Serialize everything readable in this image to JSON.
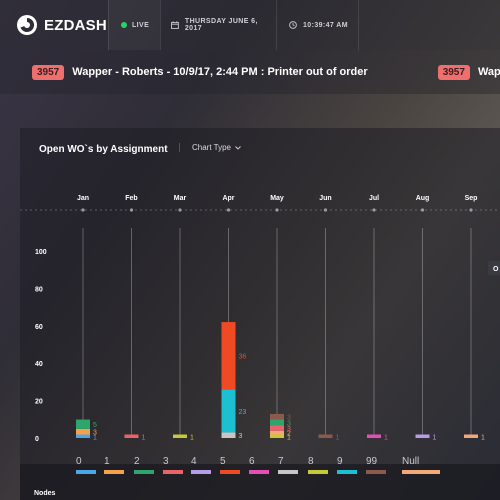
{
  "header": {
    "brand": "EZDASH",
    "live_label": "LIVE",
    "date": "THURSDAY JUNE 6, 2017",
    "time": "10:39:47 AM"
  },
  "ticker": [
    {
      "badge": "3957",
      "text": "Wapper - Roberts - 10/9/17, 2:44 PM : Printer out of order"
    },
    {
      "badge": "3957",
      "text": "Wapper - Ro"
    }
  ],
  "panel": {
    "title": "Open WO`s by Assignment",
    "chart_type_label": "Chart Type",
    "tooltip_fragment": "O"
  },
  "colors": {
    "0": "#4da6e8",
    "1": "#f4a14a",
    "2": "#2ea56a",
    "3": "#e9646a",
    "4": "#b79ce8",
    "5": "#ef4a24",
    "6": "#e34fb3",
    "7": "#c6c6c6",
    "8": "#c5c93a",
    "9": "#1cc0d1",
    "99": "#8b5a4a",
    "Null": "#f3a875",
    "accent": "#29d36b",
    "badge": "#ef6f6f"
  },
  "chart_data": {
    "type": "bar",
    "stacked": true,
    "categories": [
      "Jan",
      "Feb",
      "Mar",
      "Apr",
      "May",
      "Jun",
      "Jul",
      "Aug",
      "Sep"
    ],
    "ylim": [
      0,
      100
    ],
    "yticks": [
      0,
      20,
      40,
      60,
      80,
      100
    ],
    "grid": false,
    "legend_title": "Nodes",
    "legend": [
      "0",
      "1",
      "2",
      "3",
      "4",
      "5",
      "6",
      "7",
      "8",
      "9",
      "99",
      "Null"
    ],
    "stacks": [
      [
        {
          "node": "0",
          "value": 1
        },
        {
          "node": "1",
          "value": 3
        },
        {
          "node": "2",
          "value": 5
        }
      ],
      [
        {
          "node": "3",
          "value": 1
        }
      ],
      [
        {
          "node": "8",
          "value": 1
        }
      ],
      [
        {
          "node": "7",
          "value": 3
        },
        {
          "node": "9",
          "value": 23
        },
        {
          "node": "5",
          "value": 36
        }
      ],
      [
        {
          "node": "8",
          "value": 1
        },
        {
          "node": "Null",
          "value": 2
        },
        {
          "node": "3",
          "value": 3
        },
        {
          "node": "2",
          "value": 3
        },
        {
          "node": "99",
          "value": 3
        }
      ],
      [
        {
          "node": "99",
          "value": 1
        }
      ],
      [
        {
          "node": "6",
          "value": 1
        }
      ],
      [
        {
          "node": "4",
          "value": 1
        }
      ],
      [
        {
          "node": "Null",
          "value": 1
        }
      ]
    ]
  }
}
